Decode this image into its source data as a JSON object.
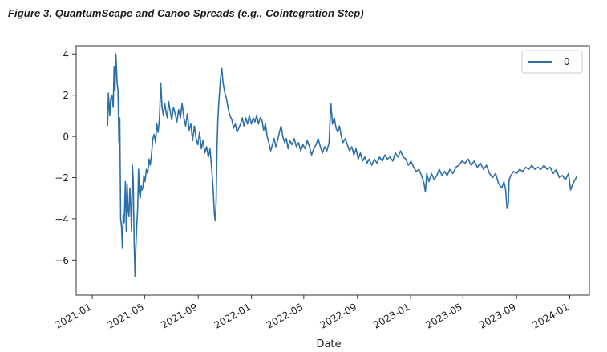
{
  "figure": {
    "caption": "Figure 3. QuantumScape and Canoo Spreads (e.g., Cointegration Step)"
  },
  "chart_data": {
    "type": "line",
    "xlabel": "Date",
    "ylabel": "",
    "xlim": [
      "2020-11-25",
      "2024-02-15"
    ],
    "ylim": [
      -7.7,
      4.4
    ],
    "x_ticks": [
      "2021-01",
      "2021-05",
      "2021-09",
      "2022-01",
      "2022-05",
      "2022-09",
      "2023-01",
      "2023-05",
      "2023-09",
      "2024-01"
    ],
    "y_ticks": [
      4,
      2,
      0,
      -2,
      -4,
      -6
    ],
    "y_tick_labels": [
      "4",
      "2",
      "0",
      "−2",
      "−4",
      "−6"
    ],
    "grid": false,
    "legend_position": "top-right",
    "color": "#2d6fa8",
    "series": [
      {
        "name": "0",
        "points": [
          [
            "2021-02-05",
            0.5
          ],
          [
            "2021-02-07",
            2.1
          ],
          [
            "2021-02-10",
            1.0
          ],
          [
            "2021-02-12",
            1.8
          ],
          [
            "2021-02-15",
            2.0
          ],
          [
            "2021-02-18",
            1.4
          ],
          [
            "2021-02-20",
            3.4
          ],
          [
            "2021-02-22",
            2.2
          ],
          [
            "2021-02-24",
            4.0
          ],
          [
            "2021-02-27",
            2.6
          ],
          [
            "2021-03-01",
            2.2
          ],
          [
            "2021-03-03",
            -0.3
          ],
          [
            "2021-03-05",
            0.9
          ],
          [
            "2021-03-07",
            -4.0
          ],
          [
            "2021-03-09",
            -4.4
          ],
          [
            "2021-03-11",
            -5.4
          ],
          [
            "2021-03-13",
            -3.8
          ],
          [
            "2021-03-15",
            -4.2
          ],
          [
            "2021-03-18",
            -2.2
          ],
          [
            "2021-03-20",
            -4.6
          ],
          [
            "2021-03-22",
            -2.3
          ],
          [
            "2021-03-24",
            -3.6
          ],
          [
            "2021-03-26",
            -3.9
          ],
          [
            "2021-03-28",
            -2.5
          ],
          [
            "2021-03-30",
            -3.4
          ],
          [
            "2021-04-01",
            -4.6
          ],
          [
            "2021-04-03",
            -1.4
          ],
          [
            "2021-04-05",
            -2.2
          ],
          [
            "2021-04-07",
            -5.2
          ],
          [
            "2021-04-09",
            -6.8
          ],
          [
            "2021-04-11",
            -5.3
          ],
          [
            "2021-04-13",
            -4.3
          ],
          [
            "2021-04-15",
            -3.5
          ],
          [
            "2021-04-17",
            -1.6
          ],
          [
            "2021-04-19",
            -2.7
          ],
          [
            "2021-04-21",
            -3.0
          ],
          [
            "2021-04-23",
            -2.4
          ],
          [
            "2021-04-25",
            -2.6
          ],
          [
            "2021-04-27",
            -2.5
          ],
          [
            "2021-04-29",
            -1.9
          ],
          [
            "2021-05-02",
            -2.2
          ],
          [
            "2021-05-05",
            -1.6
          ],
          [
            "2021-05-08",
            -1.8
          ],
          [
            "2021-05-11",
            -1.1
          ],
          [
            "2021-05-14",
            -1.4
          ],
          [
            "2021-05-17",
            -0.8
          ],
          [
            "2021-05-20",
            -0.1
          ],
          [
            "2021-05-23",
            0.1
          ],
          [
            "2021-05-26",
            -0.3
          ],
          [
            "2021-05-29",
            0.6
          ],
          [
            "2021-06-01",
            0.2
          ],
          [
            "2021-06-04",
            0.9
          ],
          [
            "2021-06-07",
            2.6
          ],
          [
            "2021-06-10",
            1.4
          ],
          [
            "2021-06-13",
            1.0
          ],
          [
            "2021-06-16",
            1.6
          ],
          [
            "2021-06-19",
            1.2
          ],
          [
            "2021-06-22",
            0.9
          ],
          [
            "2021-06-25",
            1.7
          ],
          [
            "2021-06-28",
            1.3
          ],
          [
            "2021-07-02",
            0.8
          ],
          [
            "2021-07-06",
            1.4
          ],
          [
            "2021-07-10",
            1.1
          ],
          [
            "2021-07-14",
            0.7
          ],
          [
            "2021-07-18",
            1.3
          ],
          [
            "2021-07-22",
            0.9
          ],
          [
            "2021-07-26",
            1.6
          ],
          [
            "2021-07-30",
            0.9
          ],
          [
            "2021-08-03",
            0.5
          ],
          [
            "2021-08-07",
            1.1
          ],
          [
            "2021-08-11",
            0.3
          ],
          [
            "2021-08-15",
            0.6
          ],
          [
            "2021-08-19",
            -0.2
          ],
          [
            "2021-08-23",
            0.5
          ],
          [
            "2021-08-27",
            -0.1
          ],
          [
            "2021-08-31",
            -0.4
          ],
          [
            "2021-09-04",
            0.2
          ],
          [
            "2021-09-08",
            -0.6
          ],
          [
            "2021-09-12",
            -0.2
          ],
          [
            "2021-09-16",
            -0.8
          ],
          [
            "2021-09-20",
            -0.5
          ],
          [
            "2021-09-24",
            -1.0
          ],
          [
            "2021-09-28",
            -0.6
          ],
          [
            "2021-10-02",
            -1.6
          ],
          [
            "2021-10-05",
            -2.5
          ],
          [
            "2021-10-08",
            -3.8
          ],
          [
            "2021-10-10",
            -4.1
          ],
          [
            "2021-10-12",
            -3.2
          ],
          [
            "2021-10-14",
            -0.6
          ],
          [
            "2021-10-16",
            0.8
          ],
          [
            "2021-10-18",
            1.6
          ],
          [
            "2021-10-20",
            2.2
          ],
          [
            "2021-10-22",
            2.8
          ],
          [
            "2021-10-25",
            3.3
          ],
          [
            "2021-10-28",
            2.6
          ],
          [
            "2021-11-01",
            2.1
          ],
          [
            "2021-11-05",
            1.8
          ],
          [
            "2021-11-09",
            1.3
          ],
          [
            "2021-11-13",
            1.0
          ],
          [
            "2021-11-17",
            0.8
          ],
          [
            "2021-11-21",
            0.4
          ],
          [
            "2021-11-25",
            0.6
          ],
          [
            "2021-11-29",
            0.2
          ],
          [
            "2021-12-03",
            0.4
          ],
          [
            "2021-12-07",
            0.6
          ],
          [
            "2021-12-11",
            0.9
          ],
          [
            "2021-12-15",
            0.5
          ],
          [
            "2021-12-19",
            0.9
          ],
          [
            "2021-12-23",
            0.6
          ],
          [
            "2021-12-27",
            1.0
          ],
          [
            "2022-01-01",
            0.6
          ],
          [
            "2022-01-05",
            0.9
          ],
          [
            "2022-01-09",
            0.7
          ],
          [
            "2022-01-13",
            1.0
          ],
          [
            "2022-01-17",
            0.6
          ],
          [
            "2022-01-21",
            0.9
          ],
          [
            "2022-01-25",
            0.8
          ],
          [
            "2022-01-29",
            0.3
          ],
          [
            "2022-02-02",
            0.6
          ],
          [
            "2022-02-06",
            0.0
          ],
          [
            "2022-02-10",
            -0.3
          ],
          [
            "2022-02-14",
            -0.7
          ],
          [
            "2022-02-18",
            -0.4
          ],
          [
            "2022-02-22",
            -0.1
          ],
          [
            "2022-02-26",
            -0.5
          ],
          [
            "2022-03-02",
            -0.2
          ],
          [
            "2022-03-06",
            0.2
          ],
          [
            "2022-03-10",
            0.5
          ],
          [
            "2022-03-14",
            0.0
          ],
          [
            "2022-03-18",
            -0.3
          ],
          [
            "2022-03-22",
            -0.1
          ],
          [
            "2022-03-26",
            -0.6
          ],
          [
            "2022-03-30",
            -0.2
          ],
          [
            "2022-04-04",
            -0.4
          ],
          [
            "2022-04-09",
            -0.1
          ],
          [
            "2022-04-14",
            -0.5
          ],
          [
            "2022-04-19",
            -0.3
          ],
          [
            "2022-04-24",
            -0.7
          ],
          [
            "2022-04-29",
            -0.4
          ],
          [
            "2022-05-04",
            -0.6
          ],
          [
            "2022-05-09",
            -0.2
          ],
          [
            "2022-05-14",
            -0.5
          ],
          [
            "2022-05-19",
            -0.9
          ],
          [
            "2022-05-24",
            -0.6
          ],
          [
            "2022-05-29",
            -0.4
          ],
          [
            "2022-06-03",
            -0.1
          ],
          [
            "2022-06-08",
            -0.5
          ],
          [
            "2022-06-13",
            -0.8
          ],
          [
            "2022-06-18",
            -0.5
          ],
          [
            "2022-06-23",
            -0.7
          ],
          [
            "2022-06-28",
            -0.3
          ],
          [
            "2022-07-02",
            1.6
          ],
          [
            "2022-07-06",
            0.6
          ],
          [
            "2022-07-10",
            0.9
          ],
          [
            "2022-07-14",
            0.4
          ],
          [
            "2022-07-18",
            0.2
          ],
          [
            "2022-07-22",
            0.5
          ],
          [
            "2022-07-26",
            0.0
          ],
          [
            "2022-07-30",
            -0.3
          ],
          [
            "2022-08-04",
            -0.1
          ],
          [
            "2022-08-09",
            -0.4
          ],
          [
            "2022-08-14",
            -0.7
          ],
          [
            "2022-08-19",
            -0.5
          ],
          [
            "2022-08-24",
            -0.9
          ],
          [
            "2022-08-29",
            -0.6
          ],
          [
            "2022-09-03",
            -1.1
          ],
          [
            "2022-09-08",
            -0.8
          ],
          [
            "2022-09-13",
            -1.2
          ],
          [
            "2022-09-18",
            -1.0
          ],
          [
            "2022-09-23",
            -1.3
          ],
          [
            "2022-09-28",
            -1.1
          ],
          [
            "2022-10-04",
            -1.4
          ],
          [
            "2022-10-10",
            -1.1
          ],
          [
            "2022-10-16",
            -1.3
          ],
          [
            "2022-10-22",
            -1.0
          ],
          [
            "2022-10-28",
            -1.2
          ],
          [
            "2022-11-03",
            -0.9
          ],
          [
            "2022-11-09",
            -1.1
          ],
          [
            "2022-11-15",
            -1.0
          ],
          [
            "2022-11-21",
            -1.2
          ],
          [
            "2022-11-27",
            -0.8
          ],
          [
            "2022-12-03",
            -1.0
          ],
          [
            "2022-12-09",
            -0.7
          ],
          [
            "2022-12-15",
            -1.0
          ],
          [
            "2022-12-21",
            -1.1
          ],
          [
            "2022-12-27",
            -1.4
          ],
          [
            "2023-01-02",
            -1.2
          ],
          [
            "2023-01-08",
            -1.5
          ],
          [
            "2023-01-14",
            -1.7
          ],
          [
            "2023-01-20",
            -1.6
          ],
          [
            "2023-01-26",
            -1.9
          ],
          [
            "2023-02-01",
            -2.3
          ],
          [
            "2023-02-04",
            -2.7
          ],
          [
            "2023-02-07",
            -1.8
          ],
          [
            "2023-02-12",
            -2.2
          ],
          [
            "2023-02-18",
            -1.8
          ],
          [
            "2023-02-24",
            -2.1
          ],
          [
            "2023-03-02",
            -1.9
          ],
          [
            "2023-03-08",
            -1.6
          ],
          [
            "2023-03-14",
            -1.9
          ],
          [
            "2023-03-20",
            -1.7
          ],
          [
            "2023-03-26",
            -1.9
          ],
          [
            "2023-04-01",
            -1.6
          ],
          [
            "2023-04-08",
            -1.8
          ],
          [
            "2023-04-15",
            -1.5
          ],
          [
            "2023-04-22",
            -1.4
          ],
          [
            "2023-04-29",
            -1.2
          ],
          [
            "2023-05-06",
            -1.3
          ],
          [
            "2023-05-13",
            -1.1
          ],
          [
            "2023-05-20",
            -1.4
          ],
          [
            "2023-05-27",
            -1.2
          ],
          [
            "2023-06-03",
            -1.5
          ],
          [
            "2023-06-10",
            -1.3
          ],
          [
            "2023-06-17",
            -1.6
          ],
          [
            "2023-06-24",
            -1.4
          ],
          [
            "2023-07-01",
            -1.8
          ],
          [
            "2023-07-08",
            -2.0
          ],
          [
            "2023-07-15",
            -1.8
          ],
          [
            "2023-07-22",
            -2.3
          ],
          [
            "2023-07-29",
            -2.5
          ],
          [
            "2023-08-03",
            -2.2
          ],
          [
            "2023-08-07",
            -2.6
          ],
          [
            "2023-08-10",
            -3.5
          ],
          [
            "2023-08-13",
            -3.3
          ],
          [
            "2023-08-15",
            -2.1
          ],
          [
            "2023-08-19",
            -1.9
          ],
          [
            "2023-08-25",
            -1.7
          ],
          [
            "2023-09-01",
            -1.8
          ],
          [
            "2023-09-08",
            -1.6
          ],
          [
            "2023-09-15",
            -1.7
          ],
          [
            "2023-09-22",
            -1.5
          ],
          [
            "2023-09-29",
            -1.6
          ],
          [
            "2023-10-06",
            -1.4
          ],
          [
            "2023-10-13",
            -1.6
          ],
          [
            "2023-10-20",
            -1.5
          ],
          [
            "2023-10-27",
            -1.6
          ],
          [
            "2023-11-03",
            -1.4
          ],
          [
            "2023-11-10",
            -1.6
          ],
          [
            "2023-11-17",
            -1.5
          ],
          [
            "2023-11-24",
            -1.8
          ],
          [
            "2023-12-01",
            -1.6
          ],
          [
            "2023-12-08",
            -2.0
          ],
          [
            "2023-12-15",
            -1.9
          ],
          [
            "2023-12-22",
            -2.1
          ],
          [
            "2023-12-29",
            -1.8
          ],
          [
            "2024-01-03",
            -2.6
          ],
          [
            "2024-01-08",
            -2.3
          ],
          [
            "2024-01-13",
            -2.1
          ],
          [
            "2024-01-18",
            -1.9
          ]
        ]
      }
    ]
  }
}
